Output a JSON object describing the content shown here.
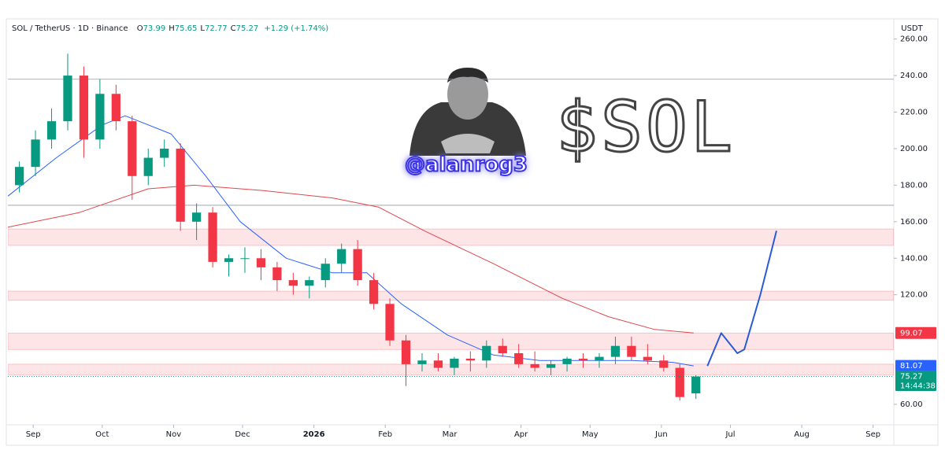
{
  "chart_data": {
    "type": "candlestick",
    "header": {
      "symbol": "SOL / TetherUS · 1D · Binance",
      "ohlc": [
        {
          "label": "O",
          "value": 73.99
        },
        {
          "label": "H",
          "value": 75.65
        },
        {
          "label": "L",
          "value": 72.77
        },
        {
          "label": "C",
          "value": 75.27
        }
      ],
      "change": "+1.29 (+1.74%)"
    },
    "currency": "USDT",
    "annotations": {
      "handle": "@alanrog3",
      "ticker": "$SOL"
    },
    "up_color": "#089981",
    "down_color": "#f23645",
    "x": [
      -6,
      1,
      8,
      15,
      22,
      29,
      36,
      43,
      50,
      57,
      64,
      71,
      78,
      85,
      92,
      99,
      106,
      113,
      120,
      127,
      134,
      141,
      148,
      155,
      162,
      169,
      176,
      183,
      190,
      197,
      204,
      211,
      218,
      225,
      232,
      239,
      246,
      253,
      260,
      267,
      274,
      281,
      288
    ],
    "open": [
      180,
      190,
      205,
      215,
      240,
      205,
      230,
      215,
      185,
      195,
      200,
      160,
      165,
      138,
      140,
      140,
      135,
      128,
      125,
      128,
      137,
      145,
      128,
      115,
      95,
      82,
      84,
      80,
      85,
      84,
      92,
      88,
      82,
      80,
      82,
      85,
      84,
      86,
      92,
      86,
      84,
      80,
      66
    ],
    "high": [
      193,
      210,
      222,
      252,
      245,
      238,
      235,
      218,
      200,
      205,
      203,
      170,
      168,
      142,
      146,
      145,
      138,
      132,
      130,
      140,
      148,
      150,
      132,
      118,
      98,
      88,
      88,
      86,
      89,
      95,
      96,
      93,
      89,
      84,
      86,
      88,
      88,
      97,
      97,
      93,
      87,
      82,
      76
    ],
    "low": [
      176,
      185,
      200,
      210,
      195,
      200,
      210,
      172,
      180,
      190,
      155,
      150,
      135,
      130,
      132,
      128,
      122,
      120,
      118,
      124,
      132,
      125,
      112,
      92,
      70,
      78,
      78,
      76,
      78,
      80,
      86,
      80,
      78,
      76,
      78,
      80,
      80,
      82,
      84,
      82,
      78,
      62,
      63
    ],
    "close": [
      190,
      205,
      215,
      240,
      205,
      230,
      215,
      185,
      195,
      200,
      160,
      165,
      138,
      140,
      140,
      135,
      128,
      125,
      128,
      137,
      145,
      128,
      115,
      95,
      82,
      84,
      80,
      85,
      84,
      92,
      88,
      82,
      80,
      82,
      85,
      84,
      86,
      92,
      86,
      84,
      80,
      64,
      75.27
    ],
    "overlays": [
      {
        "color": "#2962ff",
        "x": [
          -11,
          10,
          30,
          40,
          60,
          75,
          90,
          110,
          130,
          145,
          160,
          180,
          200,
          220,
          240,
          260,
          278,
          287
        ],
        "values": [
          174,
          195,
          213,
          218,
          208,
          185,
          160,
          140,
          132,
          132,
          115,
          98,
          87,
          84,
          84,
          84,
          83,
          81.07
        ]
      },
      {
        "color": "#e0474c",
        "x": [
          -11,
          20,
          50,
          70,
          100,
          130,
          150,
          170,
          200,
          230,
          250,
          270,
          287
        ],
        "values": [
          157,
          165,
          178,
          180,
          177,
          173,
          168,
          155,
          137,
          118,
          108,
          101,
          99.07
        ]
      },
      {
        "color": "#2a5bd7",
        "width": 2,
        "x": [
          293,
          299,
          306,
          309,
          316,
          323
        ],
        "values": [
          81,
          99,
          88,
          90,
          120,
          155
        ]
      }
    ],
    "zones": [
      [
        147,
        156
      ],
      [
        117,
        122
      ],
      [
        90,
        99
      ],
      [
        76,
        82
      ]
    ],
    "zone_color": "#f23645",
    "ref_lines": [
      238,
      169
    ],
    "price_labels": [
      {
        "value": 99.07,
        "color": "#f23645"
      },
      {
        "value": 81.07,
        "color": "#2962ff"
      },
      {
        "value": 75.27,
        "color": "#089981",
        "countdown": "14:44:38"
      }
    ],
    "xlim": [
      -11,
      374
    ],
    "ylim": [
      48.8,
      262
    ],
    "yticks": [
      {
        "value": 260,
        "label": "260.00"
      },
      {
        "value": 240,
        "label": "240.00"
      },
      {
        "value": 220,
        "label": "220.00"
      },
      {
        "value": 200,
        "label": "200.00"
      },
      {
        "value": 180,
        "label": "180.00"
      },
      {
        "value": 160,
        "label": "160.00"
      },
      {
        "value": 140,
        "label": "140.00"
      },
      {
        "value": 120,
        "label": "120.00"
      },
      {
        "value": 60,
        "label": "60.00"
      }
    ],
    "xticks": [
      {
        "value": 0,
        "label": "Sep"
      },
      {
        "value": 30,
        "label": "Oct"
      },
      {
        "value": 61,
        "label": "Nov"
      },
      {
        "value": 91,
        "label": "Dec"
      },
      {
        "value": 122,
        "label": "2026"
      },
      {
        "value": 153,
        "label": "Feb"
      },
      {
        "value": 181,
        "label": "Mar"
      },
      {
        "value": 212,
        "label": "Apr"
      },
      {
        "value": 242,
        "label": "May"
      },
      {
        "value": 273,
        "label": "Jun"
      },
      {
        "value": 303,
        "label": "Jul"
      },
      {
        "value": 334,
        "label": "Aug"
      },
      {
        "value": 365,
        "label": "Sep"
      }
    ]
  }
}
